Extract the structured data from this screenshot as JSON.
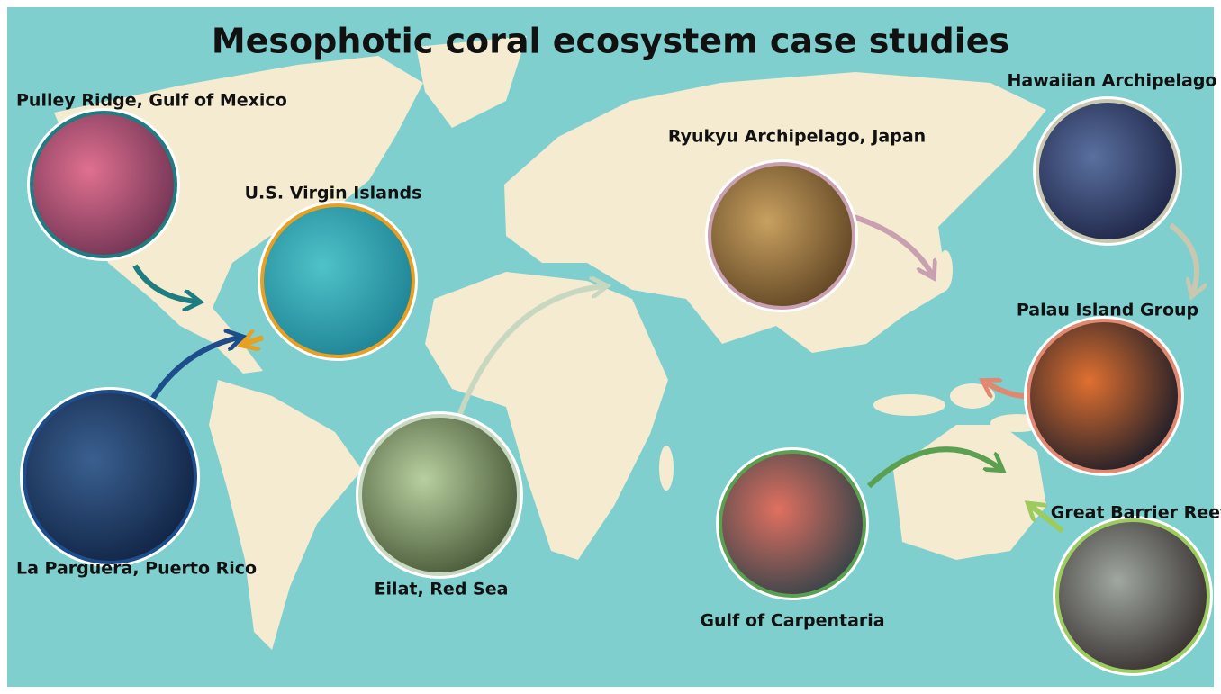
{
  "title": "Mesophotic coral ecosystem case studies",
  "sites": [
    {
      "label": "Pulley Ridge, Gulf of Mexico"
    },
    {
      "label": "U.S. Virgin Islands"
    },
    {
      "label": "Ryukyu Archipelago, Japan"
    },
    {
      "label": "Hawaiian Archipelago"
    },
    {
      "label": "Palau Island Group"
    },
    {
      "label": "La Parguera, Puerto Rico"
    },
    {
      "label": "Eilat, Red Sea"
    },
    {
      "label": "Gulf of Carpentaria"
    },
    {
      "label": "Great Barrier Reef"
    }
  ]
}
